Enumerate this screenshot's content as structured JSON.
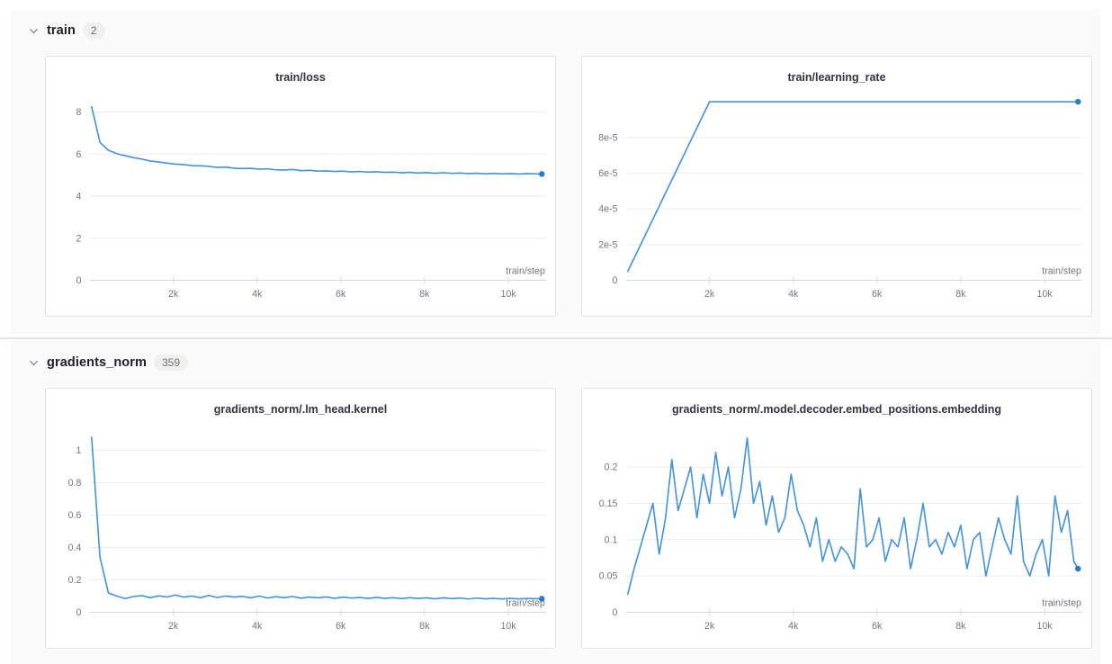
{
  "colors": {
    "line": "#4592d8",
    "end_dot": "#2c7cc9",
    "grid": "#ededed",
    "axis_line": "#d6d6d6",
    "tick_mark": "#dddddd",
    "tick_text": "#75757e",
    "section_bg": "#fafafa",
    "badge_bg": "#f0f0ee",
    "card_border": "#e2e2e2"
  },
  "sections": [
    {
      "title": "train",
      "badge": "2"
    },
    {
      "title": "gradients_norm",
      "badge": "359"
    }
  ],
  "chart_data": [
    {
      "type": "line",
      "title": "train/loss",
      "xlabel": "train/step",
      "x_start": 50,
      "x_step": 200,
      "x_last": 10800,
      "y": [
        8.25,
        6.55,
        6.18,
        6.02,
        5.92,
        5.83,
        5.76,
        5.67,
        5.62,
        5.57,
        5.52,
        5.5,
        5.45,
        5.44,
        5.42,
        5.36,
        5.38,
        5.33,
        5.31,
        5.32,
        5.28,
        5.3,
        5.25,
        5.24,
        5.27,
        5.21,
        5.23,
        5.19,
        5.2,
        5.17,
        5.19,
        5.15,
        5.17,
        5.14,
        5.16,
        5.13,
        5.14,
        5.11,
        5.13,
        5.1,
        5.12,
        5.09,
        5.11,
        5.08,
        5.1,
        5.07,
        5.09,
        5.06,
        5.08,
        5.06,
        5.07,
        5.05,
        5.07,
        5.05
      ],
      "xlim": [
        0,
        10900
      ],
      "ylim": [
        0,
        8.7
      ],
      "xticks": [
        2000,
        4000,
        6000,
        8000,
        10000
      ],
      "xtick_labels": [
        "2k",
        "4k",
        "6k",
        "8k",
        "10k"
      ],
      "yticks": [
        0,
        2,
        4,
        6,
        8
      ],
      "ytick_labels": [
        "0",
        "2",
        "4",
        "6",
        "8"
      ],
      "grid": true,
      "legend": false,
      "end_dot": true
    },
    {
      "type": "line",
      "title": "train/learning_rate",
      "xlabel": "train/step",
      "x": [
        50,
        2000,
        10800
      ],
      "y": [
        5e-06,
        0.0001,
        0.0001
      ],
      "xlim": [
        0,
        10900
      ],
      "ylim": [
        0,
        0.0001025
      ],
      "xticks": [
        2000,
        4000,
        6000,
        8000,
        10000
      ],
      "xtick_labels": [
        "2k",
        "4k",
        "6k",
        "8k",
        "10k"
      ],
      "yticks": [
        0,
        2e-05,
        4e-05,
        6e-05,
        8e-05
      ],
      "ytick_labels": [
        "0",
        "2e-5",
        "4e-5",
        "6e-5",
        "8e-5"
      ],
      "grid": true,
      "legend": false,
      "end_dot": true
    },
    {
      "type": "line",
      "title": "gradients_norm/.lm_head.kernel",
      "xlabel": "train/step",
      "x_start": 50,
      "x_step": 200,
      "x_last": 10800,
      "y": [
        1.08,
        0.34,
        0.12,
        0.1,
        0.085,
        0.097,
        0.102,
        0.09,
        0.101,
        0.094,
        0.106,
        0.093,
        0.1,
        0.09,
        0.104,
        0.091,
        0.1,
        0.094,
        0.098,
        0.089,
        0.1,
        0.088,
        0.096,
        0.09,
        0.097,
        0.087,
        0.094,
        0.089,
        0.095,
        0.086,
        0.093,
        0.088,
        0.091,
        0.085,
        0.092,
        0.086,
        0.09,
        0.084,
        0.09,
        0.085,
        0.089,
        0.083,
        0.089,
        0.084,
        0.088,
        0.082,
        0.088,
        0.083,
        0.086,
        0.082,
        0.086,
        0.082,
        0.085,
        0.083
      ],
      "xlim": [
        0,
        10900
      ],
      "ylim": [
        0,
        1.13
      ],
      "xticks": [
        2000,
        4000,
        6000,
        8000,
        10000
      ],
      "xtick_labels": [
        "2k",
        "4k",
        "6k",
        "8k",
        "10k"
      ],
      "yticks": [
        0,
        0.2,
        0.4,
        0.6,
        0.8,
        1
      ],
      "ytick_labels": [
        "0",
        "0.2",
        "0.4",
        "0.6",
        "0.8",
        "1"
      ],
      "grid": true,
      "legend": false,
      "end_dot": true
    },
    {
      "type": "line",
      "title": "gradients_norm/.model.decoder.embed_positions.embedding",
      "xlabel": "train/step",
      "x_start": 50,
      "x_step": 150,
      "x_last": 10800,
      "y": [
        0.025,
        0.06,
        0.09,
        0.12,
        0.15,
        0.08,
        0.13,
        0.21,
        0.14,
        0.17,
        0.2,
        0.13,
        0.19,
        0.15,
        0.22,
        0.16,
        0.2,
        0.13,
        0.17,
        0.24,
        0.15,
        0.18,
        0.12,
        0.16,
        0.11,
        0.13,
        0.19,
        0.14,
        0.12,
        0.09,
        0.13,
        0.07,
        0.1,
        0.07,
        0.09,
        0.08,
        0.06,
        0.17,
        0.09,
        0.1,
        0.13,
        0.07,
        0.1,
        0.09,
        0.13,
        0.06,
        0.1,
        0.15,
        0.09,
        0.1,
        0.08,
        0.11,
        0.09,
        0.12,
        0.06,
        0.1,
        0.11,
        0.05,
        0.09,
        0.13,
        0.1,
        0.08,
        0.16,
        0.07,
        0.05,
        0.08,
        0.1,
        0.05,
        0.16,
        0.11,
        0.14,
        0.07,
        0.06
      ],
      "xlim": [
        0,
        10900
      ],
      "ylim": [
        0,
        0.252
      ],
      "xticks": [
        2000,
        4000,
        6000,
        8000,
        10000
      ],
      "xtick_labels": [
        "2k",
        "4k",
        "6k",
        "8k",
        "10k"
      ],
      "yticks": [
        0,
        0.05,
        0.1,
        0.15,
        0.2
      ],
      "ytick_labels": [
        "0",
        "0.05",
        "0.1",
        "0.15",
        "0.2"
      ],
      "grid": true,
      "legend": false,
      "end_dot": true
    }
  ]
}
